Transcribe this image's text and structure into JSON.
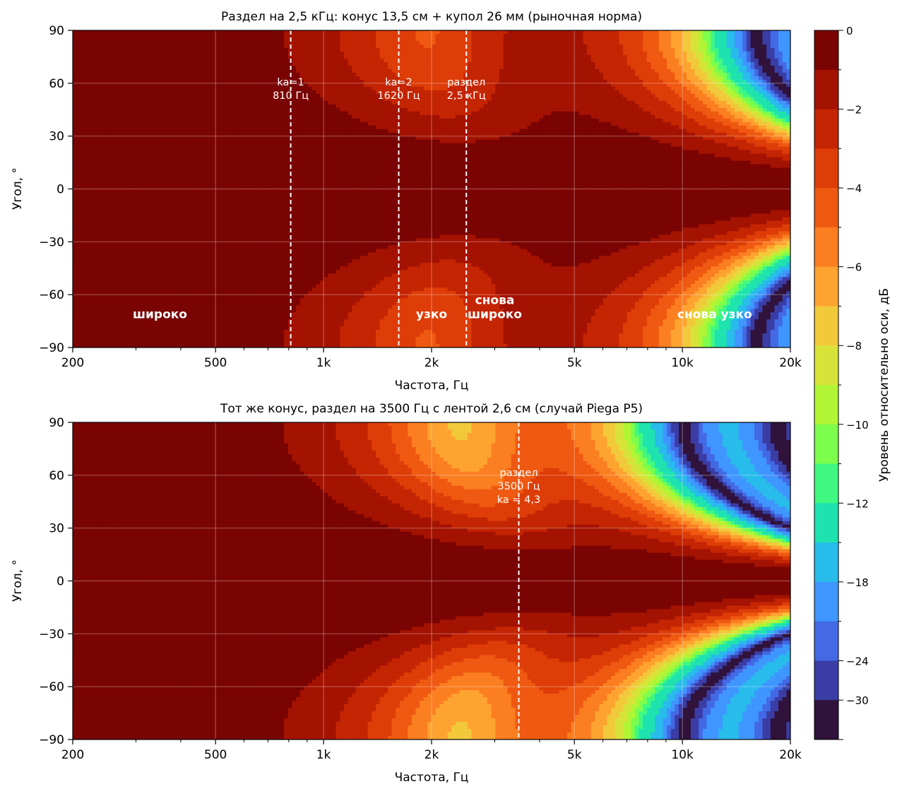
{
  "chart_data": [
    {
      "type": "heatmap",
      "title": "Раздел на 2,5 кГц: конус 13,5 см + купол 26 мм (рыночная норма)",
      "xlabel": "Частота, Гц",
      "ylabel": "Угол, °",
      "x_scale": "log",
      "xlim": [
        200,
        20000
      ],
      "ylim": [
        -90,
        90
      ],
      "x_ticks": [
        200,
        500,
        1000,
        2000,
        5000,
        10000,
        20000
      ],
      "x_tick_labels": [
        "200",
        "500",
        "1k",
        "2k",
        "5k",
        "10k",
        "20k"
      ],
      "y_ticks": [
        -90,
        -60,
        -30,
        0,
        30,
        60,
        90
      ],
      "y_tick_labels": [
        "−90",
        "−60",
        "−30",
        "0",
        "30",
        "60",
        "90"
      ],
      "grid": true,
      "model": {
        "cone_diameter_cm": 13.5,
        "tweeter_diameter_cm": 2.6,
        "crossover_hz": 2500,
        "tweeter_type": "dome"
      },
      "vlines": [
        {
          "x": 810,
          "label": [
            "ka=1",
            "810 Гц"
          ],
          "label_y": 55
        },
        {
          "x": 1620,
          "label": [
            "ka=2",
            "1620 Гц"
          ],
          "label_y": 55
        },
        {
          "x": 2500,
          "label": [
            "раздел",
            "2,5 кГц"
          ],
          "label_y": 55
        }
      ],
      "annotations": [
        {
          "x": 350,
          "y": -71,
          "lines": [
            "широко"
          ]
        },
        {
          "x": 2000,
          "y": -71,
          "lines": [
            "узко"
          ]
        },
        {
          "x": 3000,
          "y": -71,
          "lines": [
            "снова",
            "широко"
          ]
        },
        {
          "x": 12300,
          "y": -71,
          "lines": [
            "снова узко"
          ]
        }
      ]
    },
    {
      "type": "heatmap",
      "title": "Тот же конус, раздел на 3500 Гц с лентой 2,6 см (случай Piega P5)",
      "xlabel": "Частота, Гц",
      "ylabel": "Угол, °",
      "x_scale": "log",
      "xlim": [
        200,
        20000
      ],
      "ylim": [
        -90,
        90
      ],
      "x_ticks": [
        200,
        500,
        1000,
        2000,
        5000,
        10000,
        20000
      ],
      "x_tick_labels": [
        "200",
        "500",
        "1k",
        "2k",
        "5k",
        "10k",
        "20k"
      ],
      "y_ticks": [
        -90,
        -60,
        -30,
        0,
        30,
        60,
        90
      ],
      "y_tick_labels": [
        "−90",
        "−60",
        "−30",
        "0",
        "30",
        "60",
        "90"
      ],
      "grid": true,
      "model": {
        "cone_diameter_cm": 13.5,
        "tweeter_diameter_cm": 2.6,
        "crossover_hz": 3500,
        "tweeter_type": "ribbon"
      },
      "vlines": [
        {
          "x": 3500,
          "label": [
            "раздел",
            "3500 Гц",
            "ka = 4,3"
          ],
          "label_y": 52
        }
      ],
      "annotations": []
    }
  ],
  "colorbar": {
    "label": "Уровень относительно оси, дБ",
    "range": [
      -30,
      0
    ],
    "levels": [
      0,
      -1,
      -2,
      -3,
      -4,
      -5,
      -6,
      -7,
      -8,
      -9,
      -10,
      -11,
      -12,
      -15,
      -18,
      -21,
      -24,
      -30
    ],
    "ticks": [
      0,
      -2,
      -4,
      -6,
      -8,
      -10,
      -12,
      -18,
      -24,
      -30
    ],
    "tick_labels": [
      "0",
      "−2",
      "−4",
      "−6",
      "−8",
      "−10",
      "−12",
      "−18",
      "−24",
      "−30"
    ],
    "colors": [
      "#7a0403",
      "#a41202",
      "#c42503",
      "#de3d08",
      "#ef5911",
      "#fb7e21",
      "#fea330",
      "#f1c93a",
      "#d8e339",
      "#b2f535",
      "#7dfd4c",
      "#3ff882",
      "#1ee3af",
      "#28bceb",
      "#3f96fe",
      "#4369e5",
      "#3a3da5",
      "#30123b"
    ]
  }
}
